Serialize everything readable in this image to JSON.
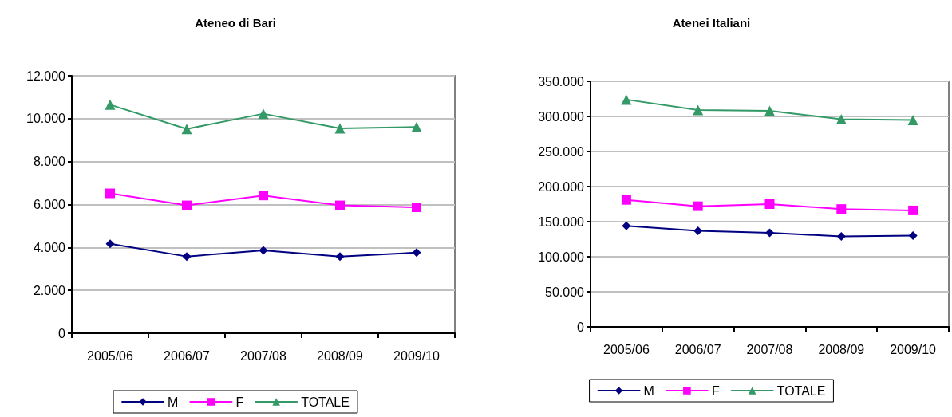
{
  "chart_data": [
    {
      "type": "line",
      "title": "Ateneo di Bari",
      "categories": [
        "2005/06",
        "2006/07",
        "2007/08",
        "2008/09",
        "2009/10"
      ],
      "series": [
        {
          "name": "M",
          "color": "#000080",
          "marker": "diamond",
          "values": [
            4170,
            3580,
            3860,
            3580,
            3760
          ]
        },
        {
          "name": "F",
          "color": "#ff00ff",
          "marker": "square",
          "values": [
            6520,
            5960,
            6420,
            5960,
            5870
          ]
        },
        {
          "name": "TOTALE",
          "color": "#339966",
          "marker": "triangle",
          "values": [
            10650,
            9520,
            10230,
            9550,
            9610
          ]
        }
      ],
      "ylim": [
        0,
        12000
      ],
      "yticks": [
        {
          "value": 0,
          "label": "0"
        },
        {
          "value": 2000,
          "label": "2.000"
        },
        {
          "value": 4000,
          "label": "4.000"
        },
        {
          "value": 6000,
          "label": "6.000"
        },
        {
          "value": 8000,
          "label": "8.000"
        },
        {
          "value": 10000,
          "label": "10.000"
        },
        {
          "value": 12000,
          "label": "12.000"
        }
      ],
      "grid": "y",
      "legend": "bottom",
      "line_style": "solid"
    },
    {
      "type": "line",
      "title": "Atenei Italiani",
      "categories": [
        "2005/06",
        "2006/07",
        "2007/08",
        "2008/09",
        "2009/10"
      ],
      "series": [
        {
          "name": "M",
          "color": "#000080",
          "marker": "diamond",
          "values": [
            144000,
            137000,
            134000,
            129000,
            130000
          ]
        },
        {
          "name": "F",
          "color": "#ff00ff",
          "marker": "square",
          "values": [
            181000,
            172000,
            175000,
            168000,
            166000
          ]
        },
        {
          "name": "TOTALE",
          "color": "#339966",
          "marker": "triangle",
          "values": [
            324000,
            309000,
            308000,
            296000,
            295000
          ]
        }
      ],
      "ylim": [
        0,
        350000
      ],
      "yticks": [
        {
          "value": 0,
          "label": "0"
        },
        {
          "value": 50000,
          "label": "50.000"
        },
        {
          "value": 100000,
          "label": "100.000"
        },
        {
          "value": 150000,
          "label": "150.000"
        },
        {
          "value": 200000,
          "label": "200.000"
        },
        {
          "value": 250000,
          "label": "250.000"
        },
        {
          "value": 300000,
          "label": "300.000"
        },
        {
          "value": 350000,
          "label": "350.000"
        }
      ],
      "grid": "y",
      "legend": "bottom",
      "line_style": "solid"
    }
  ]
}
